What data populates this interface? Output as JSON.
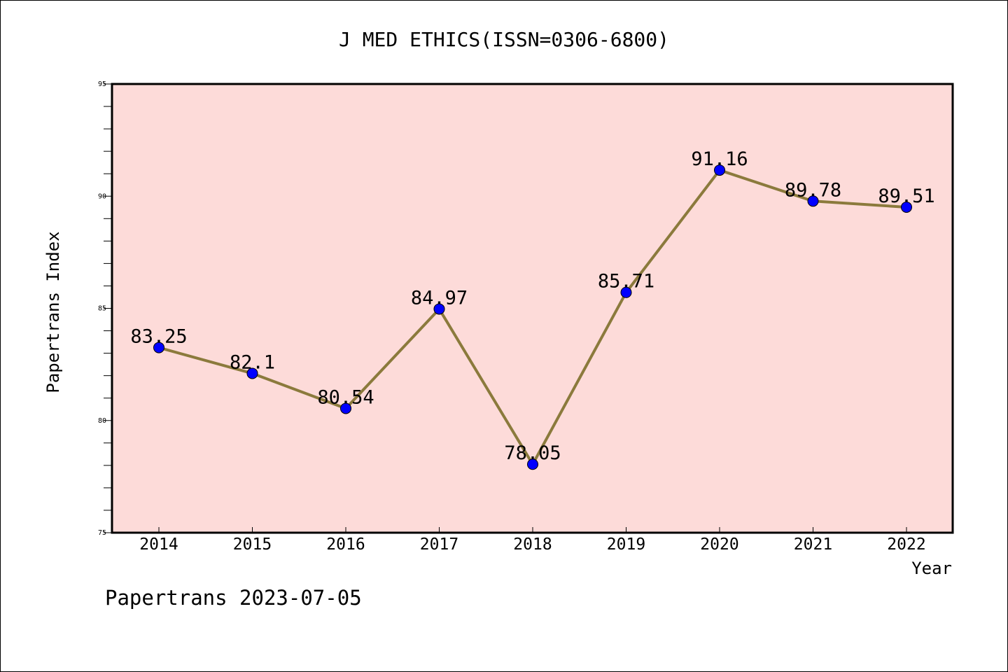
{
  "chart_data": {
    "type": "line",
    "title": "J MED ETHICS(ISSN=0306-6800)",
    "xlabel": "Year",
    "ylabel": "Papertrans Index",
    "categories": [
      "2014",
      "2015",
      "2016",
      "2017",
      "2018",
      "2019",
      "2020",
      "2021",
      "2022"
    ],
    "series": [
      {
        "values": [
          83.25,
          82.1,
          80.54,
          84.97,
          78.05,
          85.71,
          91.16,
          89.78,
          89.51
        ],
        "labels": [
          "83.25",
          "82.1",
          "80.54",
          "84.97",
          "78.05",
          "85.71",
          "91.16",
          "89.78",
          "89.51"
        ],
        "line_color": "#8b7a3c",
        "marker_color": "#0000ff"
      }
    ],
    "ylim": [
      75,
      95
    ],
    "yticks": [
      "75",
      "80",
      "85",
      "90",
      "95"
    ],
    "plot_background": "#fddbd9",
    "grid": false
  },
  "footer": {
    "watermark": "Papertrans 2023-07-05"
  }
}
